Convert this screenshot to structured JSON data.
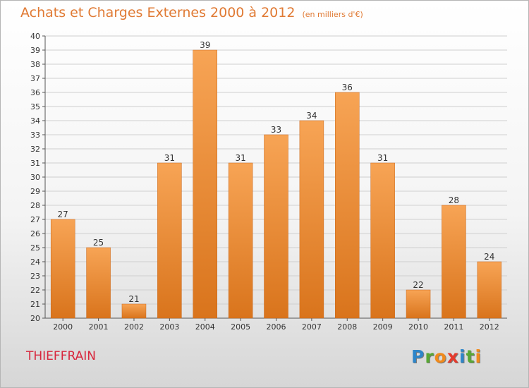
{
  "header": {
    "title": "Achats et Charges Externes 2000 à 2012",
    "unit": "(en milliers d'€)"
  },
  "footer": {
    "commune": "THIEFFRAIN",
    "logo": "Proxiti",
    "logo_letters": [
      {
        "ch": "P",
        "color": "#2e86c9"
      },
      {
        "ch": "r",
        "color": "#58a834"
      },
      {
        "ch": "o",
        "color": "#f08a1c"
      },
      {
        "ch": "x",
        "color": "#e53a2c"
      },
      {
        "ch": "i",
        "color": "#2e86c9"
      },
      {
        "ch": "t",
        "color": "#58a834"
      },
      {
        "ch": "i",
        "color": "#f08a1c"
      }
    ]
  },
  "colors": {
    "title": "#e07a34",
    "bar_top": "#f7a455",
    "bar_bottom": "#d9741c",
    "grid": "#cfcfcf",
    "commune": "#d8263c"
  },
  "chart_data": {
    "type": "bar",
    "categories": [
      "2000",
      "2001",
      "2002",
      "2003",
      "2004",
      "2005",
      "2006",
      "2007",
      "2008",
      "2009",
      "2010",
      "2011",
      "2012"
    ],
    "values": [
      27,
      25,
      21,
      31,
      39,
      31,
      33,
      34,
      36,
      31,
      22,
      28,
      24
    ],
    "ylim": [
      20,
      40
    ],
    "yticks": [
      20,
      21,
      22,
      23,
      24,
      25,
      26,
      27,
      28,
      29,
      30,
      31,
      32,
      33,
      34,
      35,
      36,
      37,
      38,
      39,
      40
    ],
    "grid": true,
    "data_labels": true
  }
}
